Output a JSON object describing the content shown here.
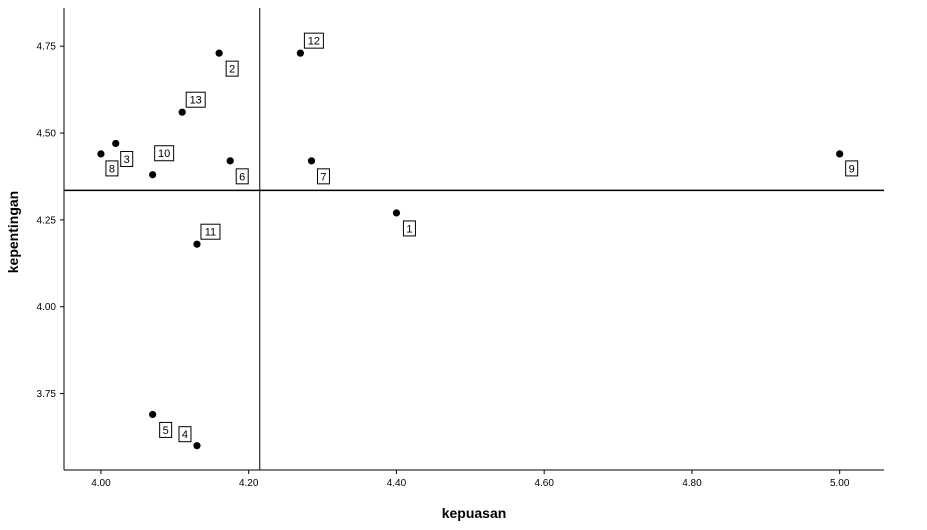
{
  "chart_data": {
    "type": "scatter",
    "xlabel": "kepuasan",
    "ylabel": "kepentingan",
    "xlim": [
      3.95,
      5.06
    ],
    "ylim": [
      3.53,
      4.86
    ],
    "x_ticks": [
      "4.00",
      "4.20",
      "4.40",
      "4.60",
      "4.80",
      "5.00"
    ],
    "y_ticks": [
      "3.75",
      "4.00",
      "4.25",
      "4.50",
      "4.75"
    ],
    "reference_lines": {
      "x": 4.215,
      "y": 4.335
    },
    "points": [
      {
        "label": "1",
        "x": 4.4,
        "y": 4.27
      },
      {
        "label": "2",
        "x": 4.16,
        "y": 4.73
      },
      {
        "label": "3",
        "x": 4.02,
        "y": 4.47
      },
      {
        "label": "4",
        "x": 4.13,
        "y": 3.6
      },
      {
        "label": "5",
        "x": 4.07,
        "y": 3.69
      },
      {
        "label": "6",
        "x": 4.175,
        "y": 4.42
      },
      {
        "label": "7",
        "x": 4.285,
        "y": 4.42
      },
      {
        "label": "8",
        "x": 4.0,
        "y": 4.44
      },
      {
        "label": "9",
        "x": 5.0,
        "y": 4.44
      },
      {
        "label": "10",
        "x": 4.07,
        "y": 4.38
      },
      {
        "label": "11",
        "x": 4.13,
        "y": 4.18
      },
      {
        "label": "12",
        "x": 4.27,
        "y": 4.73
      },
      {
        "label": "13",
        "x": 4.11,
        "y": 4.56
      }
    ],
    "grid": false,
    "legend": "none"
  }
}
